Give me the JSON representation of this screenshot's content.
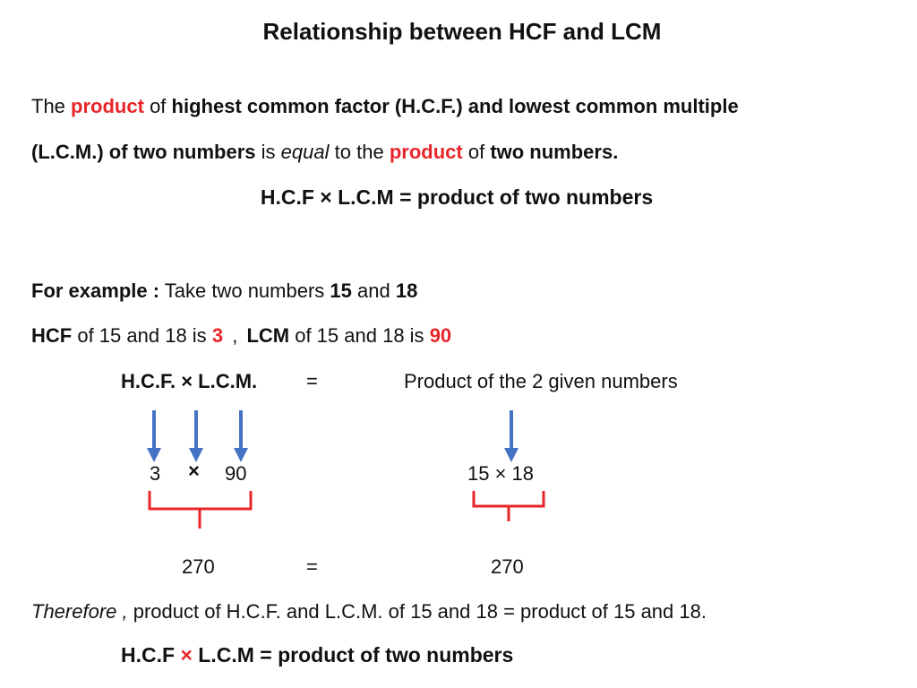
{
  "title": "Relationship between HCF and LCM",
  "intro": {
    "w1": "The",
    "w2": "product",
    "w3": "of",
    "w4": "highest common factor (H.C.F.) and lowest common multiple",
    "w5": "(L.C.M.) of two numbers",
    "w6": "is",
    "w7": "equal",
    "w8": "to the",
    "w9": "product",
    "w10": "of",
    "w11": "two numbers."
  },
  "formula_main": "H.C.F × L.C.M = product of two numbers",
  "example": {
    "label": "For example :",
    "text": "Take two numbers",
    "n1": "15",
    "and": "and",
    "n2": "18"
  },
  "hcf_line": {
    "hcf_label": "HCF",
    "hcf_text": "of 15 and 18  is",
    "hcf_value": "3",
    "comma": ",",
    "lcm_label": "LCM",
    "lcm_text": "of 15 and 18 is",
    "lcm_value": "90"
  },
  "equation_header": {
    "left": "H.C.F. × L.C.M.",
    "equals": "=",
    "right": "Product of the 2 given numbers"
  },
  "left_numbers": {
    "a": "3",
    "times": "×",
    "b": "90"
  },
  "right_numbers": "15 × 18",
  "results": {
    "left": "270",
    "equals": "=",
    "right": "270"
  },
  "conclusion": {
    "therefore": "Therefore ,",
    "rest": "product of H.C.F. and L.C.M. of 15 and 18 = product of 15 and 18."
  },
  "final_formula": {
    "part1": "H.C.F",
    "times": "×",
    "part2": "L.C.M = product of two numbers"
  },
  "colors": {
    "accent_red": "#e8262a",
    "arrow_blue": "#4472c4",
    "text": "#111111"
  }
}
